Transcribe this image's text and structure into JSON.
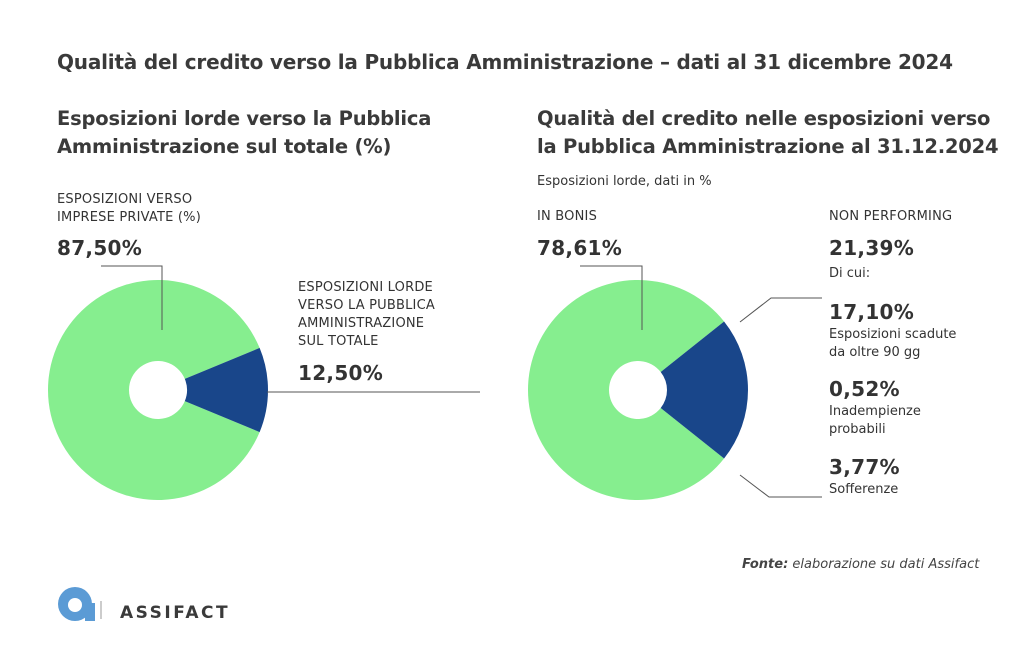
{
  "title": "Qualità del credito verso la Pubblica Amministrazione – dati al 31 dicembre 2024",
  "colors": {
    "green": "#86ee8f",
    "navy": "#19468a",
    "leader": "#555555"
  },
  "left": {
    "title_line1": "Esposizioni lorde verso la Pubblica",
    "title_line2": "Amministrazione sul totale (%)",
    "private_label_line1": "ESPOSIZIONI VERSO",
    "private_label_line2": "IMPRESE PRIVATE (%)",
    "private_value": "87,50%",
    "pa_label_line1": "ESPOSIZIONI LORDE",
    "pa_label_line2": "VERSO LA PUBBLICA",
    "pa_label_line3": "AMMINISTRAZIONE",
    "pa_label_line4": "SUL TOTALE",
    "pa_value": "12,50%"
  },
  "right": {
    "title_line1": "Qualità del credito nelle esposizioni verso",
    "title_line2": "la Pubblica Amministrazione al 31.12.2024",
    "subtitle": "Esposizioni lorde, dati in %",
    "bonis_label": "IN BONIS",
    "bonis_value": "78,61%",
    "np_label": "NON PERFORMING",
    "np_value": "21,39%",
    "di_cui": "Di cui:",
    "scadute_value": "17,10%",
    "scadute_label_line1": "Esposizioni scadute",
    "scadute_label_line2": "da oltre 90 gg",
    "inadempienze_value": "0,52%",
    "inadempienze_label_line1": "Inadempienze",
    "inadempienze_label_line2": "probabili",
    "sofferenze_value": "3,77%",
    "sofferenze_label": "Sofferenze"
  },
  "source": {
    "bold": "Fonte:",
    "text": " elaborazione su dati Assifact"
  },
  "logo": {
    "text": "ASSIFACT"
  },
  "chart_data": [
    {
      "type": "pie",
      "title": "Esposizioni lorde verso la Pubblica Amministrazione sul totale (%)",
      "categories": [
        "ESPOSIZIONI VERSO IMPRESE PRIVATE (%)",
        "ESPOSIZIONI LORDE VERSO LA PUBBLICA AMMINISTRAZIONE SUL TOTALE"
      ],
      "values": [
        87.5,
        12.5
      ]
    },
    {
      "type": "pie",
      "title": "Qualità del credito nelle esposizioni verso la Pubblica Amministrazione al 31.12.2024",
      "categories": [
        "IN BONIS",
        "NON PERFORMING"
      ],
      "values": [
        78.61,
        21.39
      ],
      "breakdown": {
        "parent": "NON PERFORMING",
        "categories": [
          "Esposizioni scadute da oltre 90 gg",
          "Inadempienze probabili",
          "Sofferenze"
        ],
        "values": [
          17.1,
          0.52,
          3.77
        ]
      }
    }
  ]
}
